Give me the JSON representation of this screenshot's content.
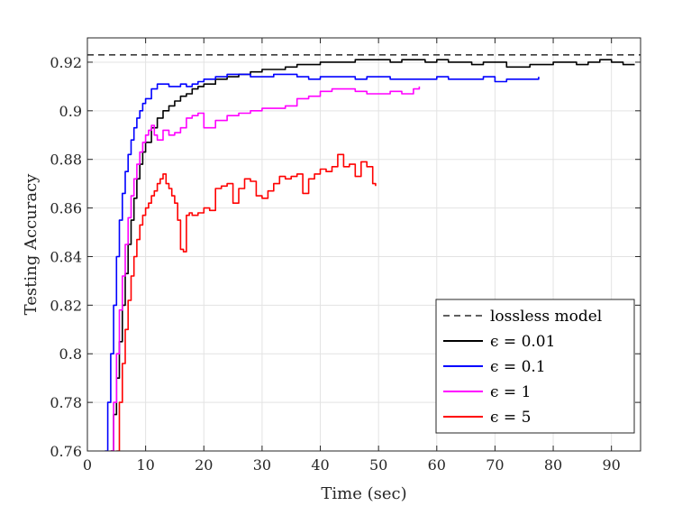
{
  "chart_data": {
    "type": "line",
    "title": "",
    "xlabel": "Time (sec)",
    "ylabel": "Testing Accuracy",
    "xlim": [
      0,
      95
    ],
    "ylim": [
      0.76,
      0.93
    ],
    "xticks": [
      0,
      10,
      20,
      30,
      40,
      50,
      60,
      70,
      80,
      90
    ],
    "yticks": [
      0.76,
      0.78,
      0.8,
      0.82,
      0.84,
      0.86,
      0.88,
      0.9,
      0.92
    ],
    "xtick_labels": [
      "0",
      "10",
      "20",
      "30",
      "40",
      "50",
      "60",
      "70",
      "80",
      "90"
    ],
    "ytick_labels": [
      "0.76",
      "0.78",
      "0.8",
      "0.82",
      "0.84",
      "0.86",
      "0.88",
      "0.9",
      "0.92"
    ],
    "grid": true,
    "legend_position": "bottom-right",
    "series": [
      {
        "name": "lossless model",
        "color": "#000000",
        "dash": true,
        "x": [
          0,
          95
        ],
        "y": [
          0.923,
          0.923
        ]
      },
      {
        "name": "ϵ = 0.01",
        "color": "#000000",
        "dash": false,
        "x": [
          4,
          4.5,
          5,
          5.5,
          6,
          6.5,
          7,
          7.5,
          8,
          8.5,
          9,
          9.5,
          10,
          11,
          12,
          13,
          14,
          15,
          16,
          17,
          18,
          19,
          20,
          22,
          24,
          26,
          28,
          30,
          32,
          34,
          36,
          38,
          40,
          42,
          44,
          46,
          48,
          50,
          52,
          54,
          56,
          58,
          60,
          62,
          64,
          66,
          68,
          70,
          72,
          74,
          76,
          78,
          80,
          82,
          84,
          86,
          88,
          90,
          92,
          94
        ],
        "y": [
          0.76,
          0.775,
          0.79,
          0.805,
          0.82,
          0.833,
          0.845,
          0.855,
          0.864,
          0.872,
          0.878,
          0.883,
          0.887,
          0.893,
          0.897,
          0.9,
          0.902,
          0.904,
          0.906,
          0.907,
          0.909,
          0.91,
          0.911,
          0.913,
          0.914,
          0.915,
          0.916,
          0.917,
          0.917,
          0.918,
          0.919,
          0.919,
          0.92,
          0.92,
          0.92,
          0.921,
          0.921,
          0.921,
          0.92,
          0.921,
          0.921,
          0.92,
          0.921,
          0.92,
          0.92,
          0.919,
          0.92,
          0.92,
          0.918,
          0.918,
          0.919,
          0.919,
          0.92,
          0.92,
          0.919,
          0.92,
          0.921,
          0.92,
          0.919,
          0.919
        ]
      },
      {
        "name": "ϵ = 0.1",
        "color": "#0000ff",
        "dash": false,
        "x": [
          3,
          3.5,
          4,
          4.5,
          5,
          5.5,
          6,
          6.5,
          7,
          7.5,
          8,
          8.5,
          9,
          9.5,
          10,
          11,
          12,
          13,
          14,
          15,
          16,
          17,
          18,
          19,
          20,
          22,
          24,
          26,
          28,
          30,
          32,
          34,
          36,
          38,
          40,
          42,
          44,
          46,
          48,
          50,
          52,
          54,
          56,
          58,
          60,
          62,
          64,
          66,
          68,
          70,
          72,
          74,
          76,
          77.5
        ],
        "y": [
          0.76,
          0.78,
          0.8,
          0.82,
          0.84,
          0.855,
          0.866,
          0.875,
          0.882,
          0.888,
          0.893,
          0.897,
          0.9,
          0.903,
          0.905,
          0.909,
          0.911,
          0.911,
          0.91,
          0.91,
          0.911,
          0.91,
          0.911,
          0.912,
          0.913,
          0.914,
          0.915,
          0.915,
          0.914,
          0.914,
          0.915,
          0.915,
          0.914,
          0.913,
          0.914,
          0.914,
          0.914,
          0.913,
          0.914,
          0.914,
          0.913,
          0.913,
          0.913,
          0.913,
          0.914,
          0.913,
          0.913,
          0.913,
          0.914,
          0.912,
          0.913,
          0.913,
          0.913,
          0.914
        ]
      },
      {
        "name": "ϵ = 1",
        "color": "#ff00ff",
        "dash": false,
        "x": [
          4,
          4.5,
          5,
          5.5,
          6,
          6.5,
          7,
          7.5,
          8,
          8.5,
          9,
          9.5,
          10,
          10.5,
          11,
          11.5,
          12,
          13,
          14,
          15,
          16,
          17,
          18,
          19,
          20,
          22,
          24,
          26,
          28,
          30,
          32,
          34,
          36,
          38,
          40,
          42,
          44,
          46,
          48,
          50,
          52,
          54,
          56,
          57
        ],
        "y": [
          0.76,
          0.78,
          0.8,
          0.818,
          0.832,
          0.845,
          0.856,
          0.865,
          0.872,
          0.878,
          0.883,
          0.887,
          0.89,
          0.892,
          0.894,
          0.89,
          0.888,
          0.892,
          0.89,
          0.891,
          0.893,
          0.897,
          0.898,
          0.899,
          0.893,
          0.896,
          0.898,
          0.899,
          0.9,
          0.901,
          0.901,
          0.902,
          0.905,
          0.906,
          0.908,
          0.909,
          0.909,
          0.908,
          0.907,
          0.907,
          0.908,
          0.907,
          0.909,
          0.91
        ]
      },
      {
        "name": "ϵ = 5",
        "color": "#ff0000",
        "dash": false,
        "x": [
          5,
          5.5,
          6,
          6.5,
          7,
          7.5,
          8,
          8.5,
          9,
          9.5,
          10,
          10.5,
          11,
          11.5,
          12,
          12.5,
          13,
          13.5,
          14,
          14.5,
          15,
          15.5,
          16,
          16.5,
          17,
          17.5,
          18,
          19,
          20,
          21,
          22,
          23,
          24,
          25,
          26,
          27,
          28,
          29,
          30,
          31,
          32,
          33,
          34,
          35,
          36,
          37,
          38,
          39,
          40,
          41,
          42,
          43,
          44,
          45,
          46,
          47,
          48,
          49,
          49.5
        ],
        "y": [
          0.76,
          0.78,
          0.796,
          0.81,
          0.822,
          0.832,
          0.84,
          0.847,
          0.853,
          0.857,
          0.86,
          0.862,
          0.865,
          0.867,
          0.87,
          0.872,
          0.874,
          0.87,
          0.868,
          0.865,
          0.862,
          0.855,
          0.843,
          0.842,
          0.857,
          0.858,
          0.857,
          0.858,
          0.86,
          0.859,
          0.868,
          0.869,
          0.87,
          0.862,
          0.868,
          0.872,
          0.871,
          0.865,
          0.864,
          0.867,
          0.87,
          0.873,
          0.872,
          0.873,
          0.874,
          0.866,
          0.872,
          0.874,
          0.876,
          0.875,
          0.877,
          0.882,
          0.877,
          0.878,
          0.873,
          0.879,
          0.877,
          0.87,
          0.869
        ]
      }
    ]
  }
}
